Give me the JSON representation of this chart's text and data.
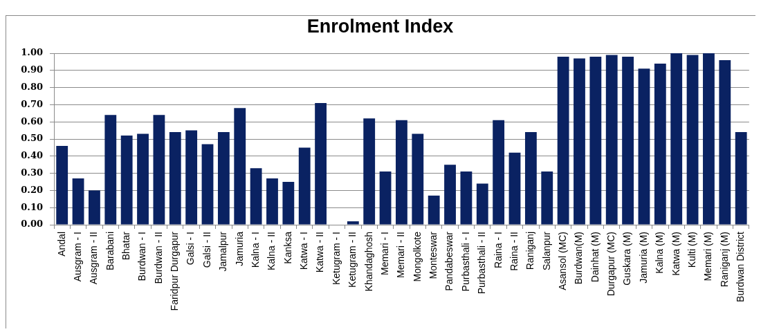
{
  "chart_data": {
    "type": "bar",
    "title": "Enrolment Index",
    "categories": [
      "Andal",
      "Ausgram - I",
      "Ausgram - II",
      "Barabani",
      "Bhatar",
      "Burdwan - I",
      "Burdwan - II",
      "Faridpur Durgapur",
      "Galsi - I",
      "Galsi - II",
      "Jamalpur",
      "Jamuria",
      "Kalna - I",
      "Kalna - II",
      "Kanksa",
      "Katwa - I",
      "Katwa - II",
      "Ketugram - I",
      "Ketugram - II",
      "Khandaghosh",
      "Memari - I",
      "Memari - II",
      "Mongolkote",
      "Monteswar",
      "Pandabeswar",
      "Purbasthali - I",
      "Purbasthali - II",
      "Raina - I",
      "Raina - II",
      "Raniganj",
      "Salanpur",
      "Asansol (MC)",
      "Burdwan(M)",
      "Dainhat (M)",
      "Durgapur (MC)",
      "Guskara (M)",
      "Jamuria (M)",
      "Kalna (M)",
      "Katwa (M)",
      "Kulti (M)",
      "Memari (M)",
      "Raniganj (M)",
      "Burdwan District"
    ],
    "values": [
      0.46,
      0.27,
      0.2,
      0.64,
      0.52,
      0.53,
      0.64,
      0.54,
      0.55,
      0.47,
      0.54,
      0.68,
      0.33,
      0.27,
      0.25,
      0.45,
      0.71,
      0,
      0.02,
      0.62,
      0.31,
      0.61,
      0.53,
      0.17,
      0.35,
      0.31,
      0.24,
      0.61,
      0.42,
      0.54,
      0.31,
      0.98,
      0.97,
      0.98,
      0.99,
      0.98,
      0.91,
      0.94,
      1.0,
      0.99,
      1.0,
      0.96,
      0.54
    ],
    "color": "#0a2262",
    "ylim": [
      0,
      1
    ],
    "yticks": [
      {
        "value": 0,
        "label": "0.00"
      },
      {
        "value": 0.1,
        "label": "0.10"
      },
      {
        "value": 0.2,
        "label": "0.20"
      },
      {
        "value": 0.3,
        "label": "0.30"
      },
      {
        "value": 0.4,
        "label": "0.40"
      },
      {
        "value": 0.5,
        "label": "0.50"
      },
      {
        "value": 0.6,
        "label": "0.60"
      },
      {
        "value": 0.7,
        "label": "0.70"
      },
      {
        "value": 0.8,
        "label": "0.80"
      },
      {
        "value": 0.9,
        "label": "0.90"
      },
      {
        "value": 1,
        "label": "1.00"
      }
    ],
    "grid": "y",
    "legend": false
  }
}
